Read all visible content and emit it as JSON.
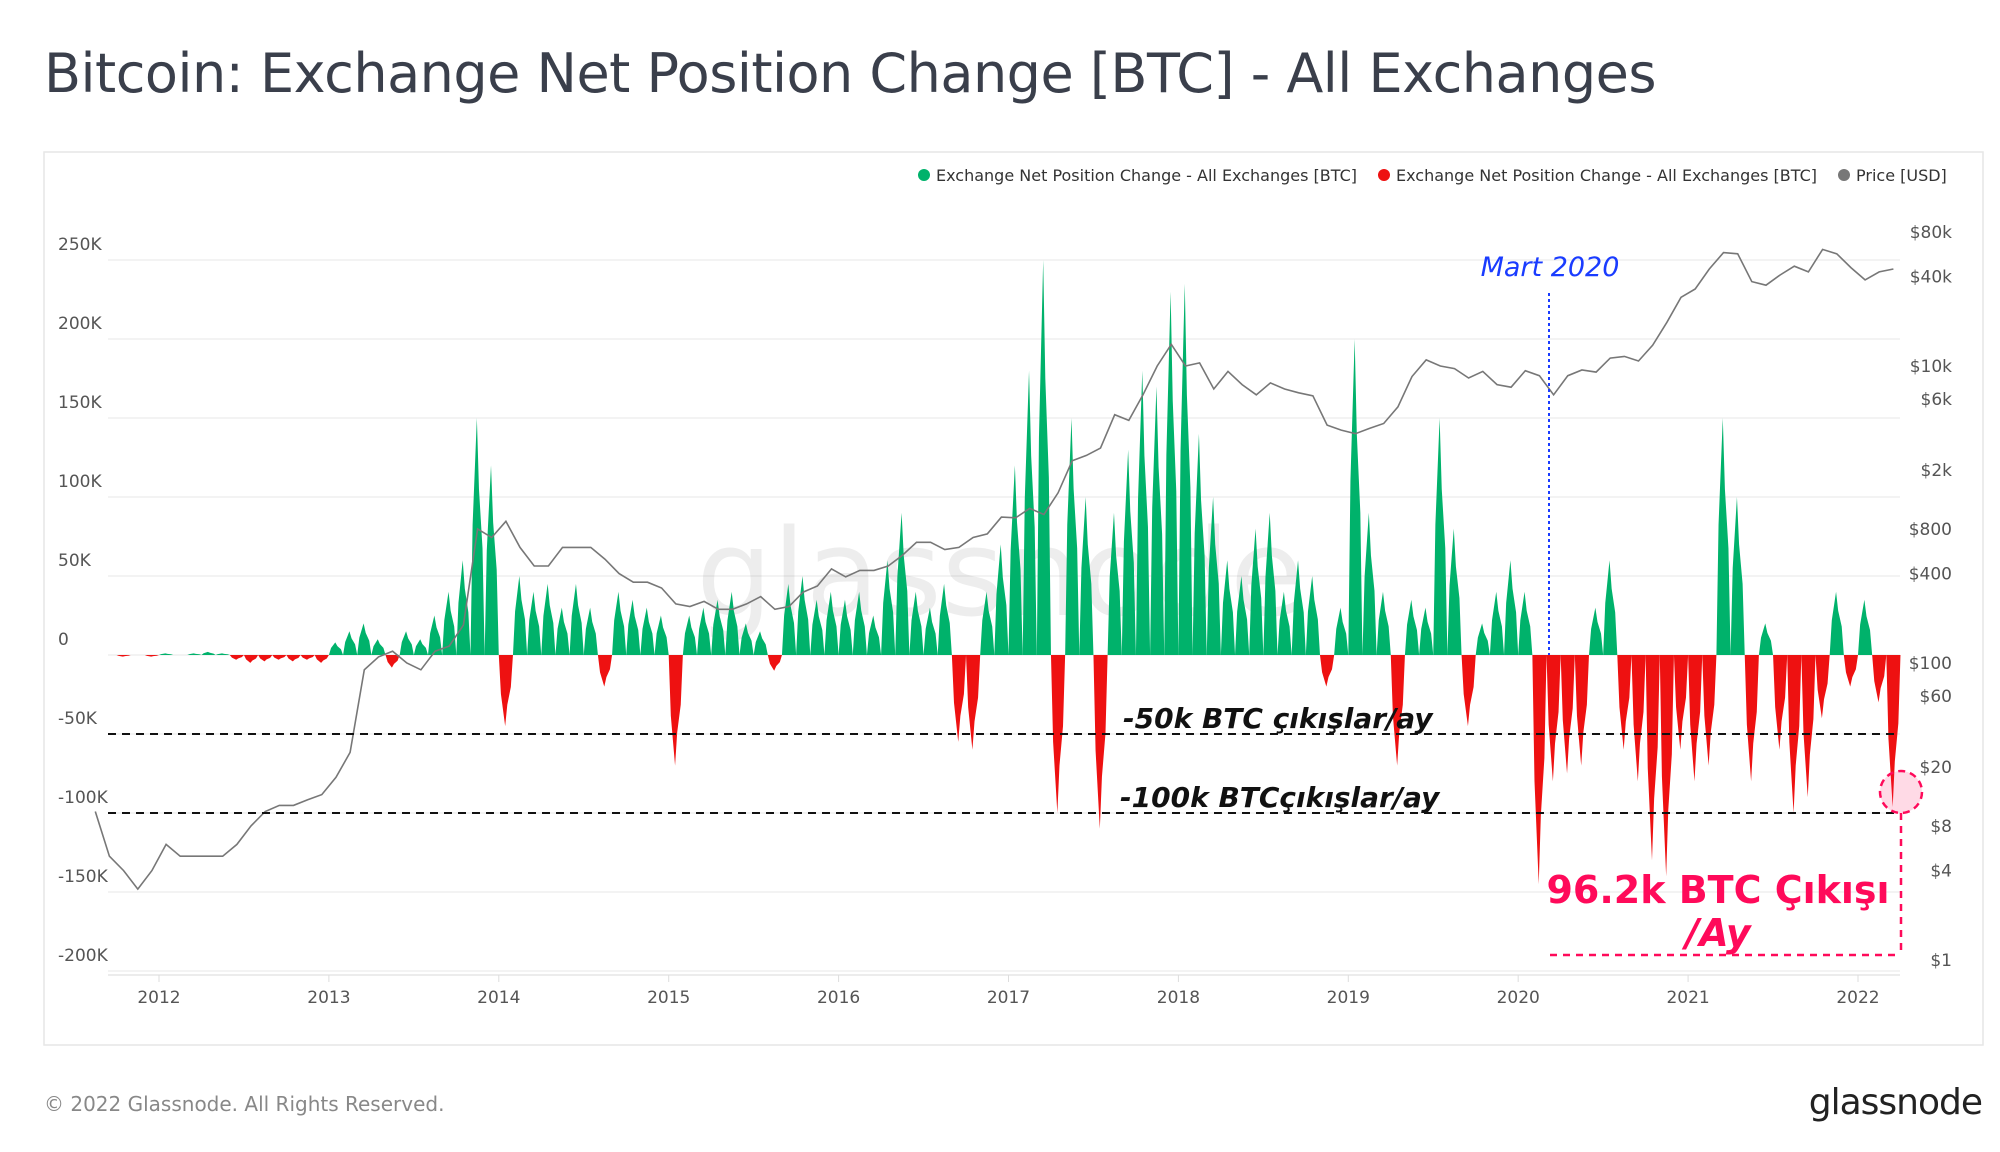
{
  "title": "Bitcoin: Exchange Net Position Change [BTC] - All Exchanges",
  "footer": {
    "copyright": "© 2022 Glassnode. All Rights Reserved.",
    "logo": "glassnode"
  },
  "watermark": "glassnode",
  "annotations": {
    "march_2020": "Mart 2020",
    "line_50k": "-50k BTC çıkışlar/ay",
    "line_100k": "-100k BTCçıkışlar/ay",
    "callout_line1": "96.2k BTC Çıkışı",
    "callout_line2": "/Ay",
    "callout_color": "#ff0a5a",
    "march_color": "#1a3cff"
  },
  "chart_data": {
    "type": "bar",
    "title": "Bitcoin: Exchange Net Position Change [BTC] - All Exchanges",
    "legend": [
      {
        "label": "Exchange Net Position Change - All Exchanges [BTC]",
        "color": "#00b26b"
      },
      {
        "label": "Exchange Net Position Change - All Exchanges [BTC]",
        "color": "#ee1111"
      },
      {
        "label": "Price [USD]",
        "color": "#777777"
      }
    ],
    "legend_position": "top-right",
    "x_start": "2011-08",
    "x_interval": "month",
    "x_ticks": [
      "2012",
      "2013",
      "2014",
      "2015",
      "2016",
      "2017",
      "2018",
      "2019",
      "2020",
      "2021",
      "2022"
    ],
    "y_left": {
      "ticks": [
        "250K",
        "200K",
        "150K",
        "100K",
        "50K",
        "0",
        "-50K",
        "-100K",
        "-150K",
        "-200K"
      ],
      "range": [
        -200000,
        250000
      ],
      "unit": "BTC"
    },
    "y_right": {
      "ticks": [
        {
          "label": "$80k",
          "v": 80000
        },
        {
          "label": "$40k",
          "v": 40000
        },
        {
          "label": "$10k",
          "v": 10000
        },
        {
          "label": "$6k",
          "v": 6000
        },
        {
          "label": "$2k",
          "v": 2000
        },
        {
          "label": "$800",
          "v": 800
        },
        {
          "label": "$400",
          "v": 400
        },
        {
          "label": "$100",
          "v": 100
        },
        {
          "label": "$60",
          "v": 60
        },
        {
          "label": "$20",
          "v": 20
        },
        {
          "label": "$8",
          "v": 8
        },
        {
          "label": "$4",
          "v": 4
        },
        {
          "label": "$1",
          "v": 1
        }
      ],
      "scale": "log"
    },
    "reference_lines": [
      -50000,
      -100000
    ],
    "grid": true,
    "net_position_change_k": [
      0,
      0,
      -1,
      0,
      -1,
      1,
      0,
      1,
      2,
      1,
      -3,
      -5,
      -4,
      -3,
      -4,
      -3,
      -5,
      8,
      15,
      20,
      10,
      -8,
      15,
      10,
      25,
      40,
      60,
      150,
      120,
      -45,
      50,
      40,
      45,
      30,
      45,
      30,
      -20,
      40,
      35,
      30,
      25,
      -70,
      25,
      30,
      35,
      40,
      20,
      15,
      -10,
      45,
      50,
      35,
      40,
      35,
      40,
      25,
      60,
      90,
      40,
      30,
      45,
      -55,
      -60,
      40,
      70,
      120,
      180,
      250,
      -100,
      150,
      100,
      -110,
      90,
      130,
      180,
      170,
      230,
      235,
      140,
      100,
      60,
      50,
      80,
      90,
      40,
      60,
      50,
      -20,
      30,
      200,
      90,
      40,
      -70,
      35,
      30,
      150,
      80,
      -45,
      20,
      40,
      60,
      40,
      -145,
      -80,
      -75,
      -70,
      30,
      60,
      -60,
      -80,
      -130,
      -140,
      -60,
      -80,
      -70,
      150,
      100,
      -80,
      20,
      -60,
      -100,
      -90,
      -40,
      40,
      -20,
      35,
      -30,
      -96.2
    ],
    "price_usd": [
      10,
      5,
      4,
      3,
      4,
      6,
      5,
      5,
      5,
      5,
      6,
      8,
      10,
      11,
      11,
      12,
      13,
      17,
      25,
      90,
      110,
      120,
      100,
      90,
      120,
      130,
      180,
      800,
      700,
      900,
      600,
      450,
      450,
      600,
      600,
      600,
      500,
      400,
      350,
      350,
      320,
      250,
      240,
      260,
      230,
      230,
      250,
      280,
      230,
      240,
      300,
      330,
      430,
      380,
      420,
      420,
      450,
      530,
      650,
      650,
      580,
      600,
      700,
      740,
      960,
      950,
      1100,
      1000,
      1400,
      2300,
      2500,
      2800,
      4700,
      4300,
      6400,
      10000,
      14000,
      10000,
      10500,
      7000,
      9200,
      7500,
      6400,
      7700,
      7000,
      6600,
      6300,
      4000,
      3700,
      3500,
      3800,
      4100,
      5300,
      8500,
      11000,
      10000,
      9600,
      8300,
      9200,
      7500,
      7200,
      9300,
      8600,
      6400,
      8600,
      9400,
      9100,
      11300,
      11600,
      10800,
      13800,
      19700,
      29000,
      33000,
      45000,
      58000,
      57000,
      37000,
      35000,
      41000,
      47000,
      43000,
      61000,
      57000,
      46000,
      38000,
      43000,
      45000
    ]
  }
}
